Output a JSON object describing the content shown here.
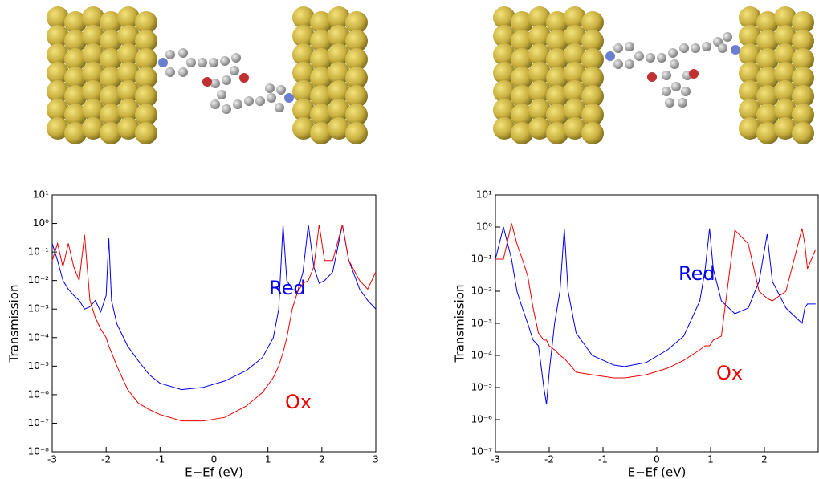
{
  "chart_data": [
    {
      "type": "line",
      "ylabel": "Transmission",
      "xlabel": "E−Ef (eV)",
      "logy": true,
      "xlim": [
        -3,
        3
      ],
      "xticks": [
        -3,
        -2,
        -1,
        0,
        1,
        2,
        3
      ],
      "ylim": [
        1e-08,
        10
      ],
      "yticks": [
        {
          "value": 1e-08,
          "label": "10⁻⁸"
        },
        {
          "value": 1e-07,
          "label": "10⁻⁷"
        },
        {
          "value": 1e-06,
          "label": "10⁻⁶"
        },
        {
          "value": 1e-05,
          "label": "10⁻⁵"
        },
        {
          "value": 0.0001,
          "label": "10⁻⁴"
        },
        {
          "value": 0.001,
          "label": "10⁻³"
        },
        {
          "value": 0.01,
          "label": "10⁻²"
        },
        {
          "value": 0.1,
          "label": "10⁻¹"
        },
        {
          "value": 1,
          "label": "10⁰"
        },
        {
          "value": 10,
          "label": "10¹"
        }
      ],
      "x": [
        -3,
        -2.9,
        -2.8,
        -2.7,
        -2.6,
        -2.5,
        -2.4,
        -2.3,
        -2.2,
        -2.1,
        -2.0,
        -1.95,
        -1.9,
        -1.8,
        -1.6,
        -1.4,
        -1.2,
        -1.0,
        -0.6,
        -0.2,
        0.2,
        0.6,
        0.9,
        1.1,
        1.2,
        1.28,
        1.35,
        1.45,
        1.55,
        1.65,
        1.75,
        1.85,
        1.95,
        2.05,
        2.2,
        2.38,
        2.5,
        2.7,
        2.85,
        3.0
      ],
      "series": [
        {
          "name": "Red",
          "color": "#0000ee",
          "values": [
            0.2,
            0.05,
            0.01,
            0.005,
            0.003,
            0.002,
            0.001,
            0.0012,
            0.002,
            0.0008,
            0.003,
            0.3,
            0.002,
            0.0003,
            5e-05,
            1.5e-05,
            5e-06,
            2.5e-06,
            1.5e-06,
            1.8e-06,
            3e-06,
            7e-06,
            2e-05,
            0.0001,
            0.001,
            0.9,
            0.01,
            0.005,
            0.004,
            0.02,
            0.9,
            0.03,
            0.008,
            0.01,
            0.02,
            0.9,
            0.05,
            0.005,
            0.002,
            0.001
          ]
        },
        {
          "name": "Ox",
          "color": "#ee0000",
          "values": [
            0.05,
            0.2,
            0.03,
            0.2,
            0.03,
            0.01,
            0.4,
            0.002,
            0.0005,
            0.0002,
            0.0001,
            5e-05,
            3e-05,
            1e-05,
            1.5e-06,
            5e-07,
            3e-07,
            2e-07,
            1.2e-07,
            1.2e-07,
            1.6e-07,
            4e-07,
            1.2e-06,
            4e-06,
            1e-05,
            3e-05,
            0.0001,
            0.001,
            0.004,
            0.008,
            0.01,
            0.03,
            0.9,
            0.05,
            0.05,
            0.9,
            0.05,
            0.01,
            0.005,
            0.02
          ]
        }
      ]
    },
    {
      "type": "line",
      "ylabel": "Transmission",
      "xlabel": "E−Ef (eV)",
      "logy": true,
      "xlim": [
        -3,
        3
      ],
      "xticks": [
        -3,
        -2,
        -1,
        0,
        1,
        2
      ],
      "ylim": [
        1e-07,
        10
      ],
      "yticks": [
        {
          "value": 1e-07,
          "label": "10⁻⁷"
        },
        {
          "value": 1e-06,
          "label": "10⁻⁶"
        },
        {
          "value": 1e-05,
          "label": "10⁻⁵"
        },
        {
          "value": 0.0001,
          "label": "10⁻⁴"
        },
        {
          "value": 0.001,
          "label": "10⁻³"
        },
        {
          "value": 0.01,
          "label": "10⁻²"
        },
        {
          "value": 0.1,
          "label": "10⁻¹"
        },
        {
          "value": 1,
          "label": "10⁰"
        },
        {
          "value": 10,
          "label": "10¹"
        }
      ],
      "x": [
        -3,
        -2.85,
        -2.7,
        -2.6,
        -2.5,
        -2.4,
        -2.3,
        -2.2,
        -2.1,
        -2.05,
        -2.0,
        -1.9,
        -1.8,
        -1.72,
        -1.65,
        -1.5,
        -1.2,
        -0.8,
        -0.6,
        -0.2,
        0.2,
        0.5,
        0.8,
        0.9,
        0.98,
        1.05,
        1.2,
        1.45,
        1.7,
        1.9,
        2.05,
        2.15,
        2.4,
        2.7,
        2.75,
        2.8,
        2.95
      ],
      "series": [
        {
          "name": "Red",
          "color": "#0000ee",
          "values": [
            0.1,
            1.0,
            0.1,
            0.01,
            0.003,
            0.001,
            0.0003,
            0.0002,
            1e-05,
            3e-06,
            3e-05,
            0.001,
            0.01,
            0.9,
            0.01,
            0.0005,
            0.0001,
            5e-05,
            4.5e-05,
            6e-05,
            0.00015,
            0.0004,
            0.005,
            0.05,
            0.9,
            0.05,
            0.005,
            0.002,
            0.003,
            0.02,
            0.6,
            0.02,
            0.003,
            0.001,
            0.003,
            0.004,
            0.004
          ]
        },
        {
          "name": "Ox",
          "color": "#ee0000",
          "values": [
            0.1,
            0.1,
            1.3,
            0.3,
            0.1,
            0.03,
            0.003,
            0.0005,
            0.0003,
            0.0003,
            0.0002,
            0.00015,
            0.0001,
            8e-05,
            6e-05,
            3e-05,
            2.5e-05,
            2e-05,
            2e-05,
            2.5e-05,
            4e-05,
            7e-05,
            0.00015,
            0.0002,
            0.0002,
            0.0003,
            0.0004,
            0.8,
            0.3,
            0.01,
            0.006,
            0.005,
            0.01,
            0.9,
            0.3,
            0.05,
            0.2
          ]
        }
      ]
    }
  ]
}
